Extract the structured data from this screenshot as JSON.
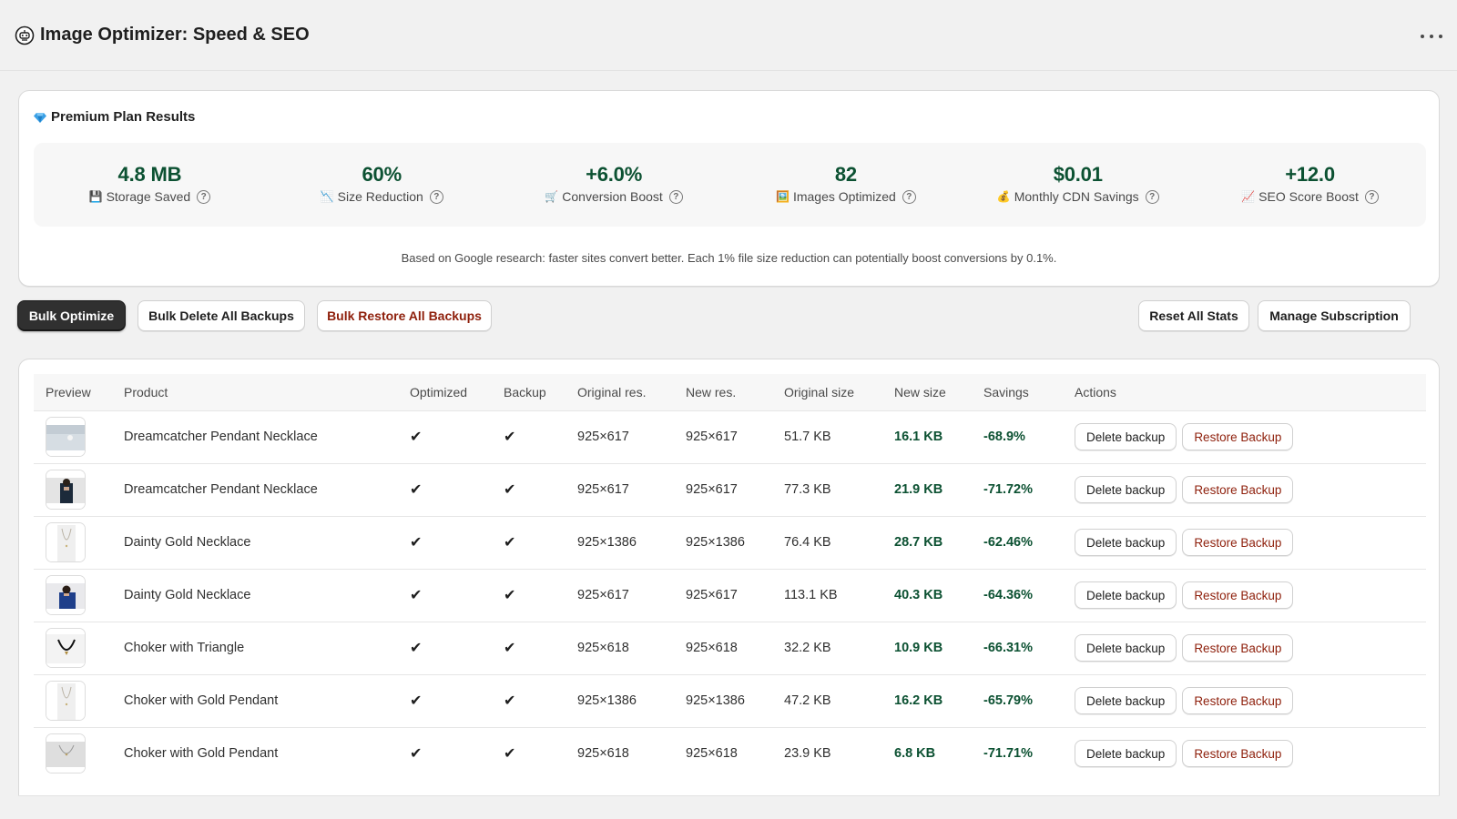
{
  "header": {
    "app_title": "Image Optimizer: Speed & SEO",
    "app_icon": "robot-icon"
  },
  "results": {
    "title": "Premium Plan Results",
    "title_icon": "gem-icon",
    "stats": [
      {
        "value": "4.8 MB",
        "label": "Storage Saved",
        "emoji": "💾"
      },
      {
        "value": "60%",
        "label": "Size Reduction",
        "emoji": "📉"
      },
      {
        "value": "+6.0%",
        "label": "Conversion Boost",
        "emoji": "🛒"
      },
      {
        "value": "82",
        "label": "Images Optimized",
        "emoji": "🖼️"
      },
      {
        "value": "$0.01",
        "label": "Monthly CDN Savings",
        "emoji": "💰"
      },
      {
        "value": "+12.0",
        "label": "SEO Score Boost",
        "emoji": "📈"
      }
    ],
    "footnote": "Based on Google research: faster sites convert better. Each 1% file size reduction can potentially boost conversions by 0.1%."
  },
  "toolbar": {
    "bulk_optimize": "Bulk Optimize",
    "bulk_delete": "Bulk Delete All Backups",
    "bulk_restore": "Bulk Restore All Backups",
    "reset_stats": "Reset All Stats",
    "manage_subscription": "Manage Subscription"
  },
  "table": {
    "columns": [
      "Preview",
      "Product",
      "Optimized",
      "Backup",
      "Original res.",
      "New res.",
      "Original size",
      "New size",
      "Savings",
      "Actions"
    ],
    "check_mark": "✔",
    "delete_label": "Delete backup",
    "restore_label": "Restore Backup",
    "rows": [
      {
        "product": "Dreamcatcher Pendant Necklace",
        "orig_res": "925×617",
        "new_res": "925×617",
        "orig_size": "51.7 KB",
        "new_size": "16.1 KB",
        "savings": "-68.9%",
        "thumb": "landscape-light"
      },
      {
        "product": "Dreamcatcher Pendant Necklace",
        "orig_res": "925×617",
        "new_res": "925×617",
        "orig_size": "77.3 KB",
        "new_size": "21.9 KB",
        "savings": "-71.72%",
        "thumb": "person-dark"
      },
      {
        "product": "Dainty Gold Necklace",
        "orig_res": "925×1386",
        "new_res": "925×1386",
        "orig_size": "76.4 KB",
        "new_size": "28.7 KB",
        "savings": "-62.46%",
        "thumb": "portrait-necklace"
      },
      {
        "product": "Dainty Gold Necklace",
        "orig_res": "925×617",
        "new_res": "925×617",
        "orig_size": "113.1 KB",
        "new_size": "40.3 KB",
        "savings": "-64.36%",
        "thumb": "person-blue"
      },
      {
        "product": "Choker with Triangle",
        "orig_res": "925×618",
        "new_res": "925×618",
        "orig_size": "32.2 KB",
        "new_size": "10.9 KB",
        "savings": "-66.31%",
        "thumb": "choker-black"
      },
      {
        "product": "Choker with Gold Pendant",
        "orig_res": "925×1386",
        "new_res": "925×1386",
        "orig_size": "47.2 KB",
        "new_size": "16.2 KB",
        "savings": "-65.79%",
        "thumb": "portrait-necklace"
      },
      {
        "product": "Choker with Gold Pendant",
        "orig_res": "925×618",
        "new_res": "925×618",
        "orig_size": "23.9 KB",
        "new_size": "6.8 KB",
        "savings": "-71.71%",
        "thumb": "landscape-necklace"
      }
    ]
  },
  "colors": {
    "accent_green": "#0c5132",
    "danger_red": "#8e1f0b",
    "primary_button": "#303030"
  }
}
